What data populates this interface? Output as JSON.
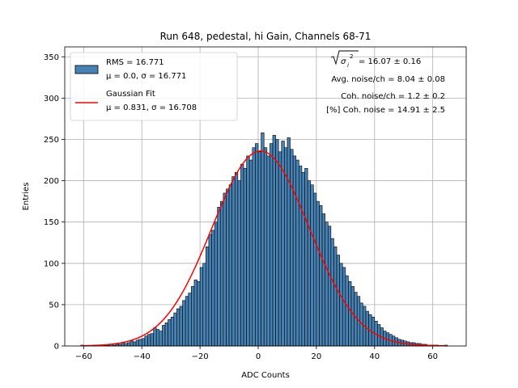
{
  "chart_data": {
    "type": "bar",
    "title": "Run 648, pedestal, hi Gain, Channels 68-71",
    "xlabel": "ADC Counts",
    "ylabel": "Entries",
    "xlim": [
      -66.5,
      71.5
    ],
    "ylim": [
      0,
      362
    ],
    "xticks": [
      -60,
      -40,
      -20,
      0,
      20,
      40,
      60
    ],
    "yticks": [
      0,
      50,
      100,
      150,
      200,
      250,
      300,
      350
    ],
    "grid": true,
    "bar_fill": "#4682b4",
    "bar_edge": "#000000",
    "fit_color": "#ff0000",
    "histogram": {
      "bin_start": -61,
      "bin_width": 1,
      "counts": [
        1,
        0,
        0,
        0,
        1,
        0,
        0,
        0,
        1,
        1,
        2,
        1,
        2,
        2,
        4,
        3,
        4,
        6,
        5,
        7,
        8,
        9,
        12,
        14,
        15,
        22,
        20,
        18,
        25,
        28,
        32,
        35,
        40,
        45,
        48,
        55,
        60,
        64,
        72,
        80,
        78,
        95,
        100,
        120,
        135,
        140,
        150,
        168,
        175,
        185,
        190,
        195,
        205,
        210,
        200,
        220,
        215,
        230,
        225,
        240,
        245,
        235,
        258,
        240,
        230,
        245,
        255,
        250,
        235,
        248,
        240,
        252,
        238,
        230,
        225,
        218,
        210,
        215,
        200,
        195,
        185,
        175,
        170,
        160,
        150,
        145,
        130,
        120,
        110,
        100,
        95,
        85,
        78,
        72,
        65,
        60,
        52,
        48,
        42,
        38,
        35,
        30,
        26,
        22,
        18,
        16,
        14,
        12,
        10,
        8,
        7,
        6,
        5,
        4,
        4,
        3,
        3,
        2,
        2,
        1,
        1,
        1,
        1,
        0,
        0,
        1
      ]
    },
    "fit": {
      "mu": 0.831,
      "sigma": 16.708,
      "amplitude": 236,
      "x_range": [
        -61,
        65
      ]
    },
    "legend": {
      "position": "upper-left",
      "entries": [
        {
          "label_line1": "RMS = 16.771",
          "label_line2": "μ = 0.0, σ = 16.771",
          "kind": "patch"
        },
        {
          "label_line1": "Gaussian Fit",
          "label_line2": "μ = 0.831, σ = 16.708",
          "kind": "line"
        }
      ]
    },
    "annotations": [
      {
        "text_suffix": " = 16.07 ± 0.16"
      },
      {
        "text": "Avg. noise/ch = 8.04 ± 0.08"
      },
      {
        "text": "Coh. noise/ch = 1.2 ± 0.2"
      },
      {
        "text": "[%] Coh. noise = 14.91 ± 2.5"
      }
    ]
  }
}
